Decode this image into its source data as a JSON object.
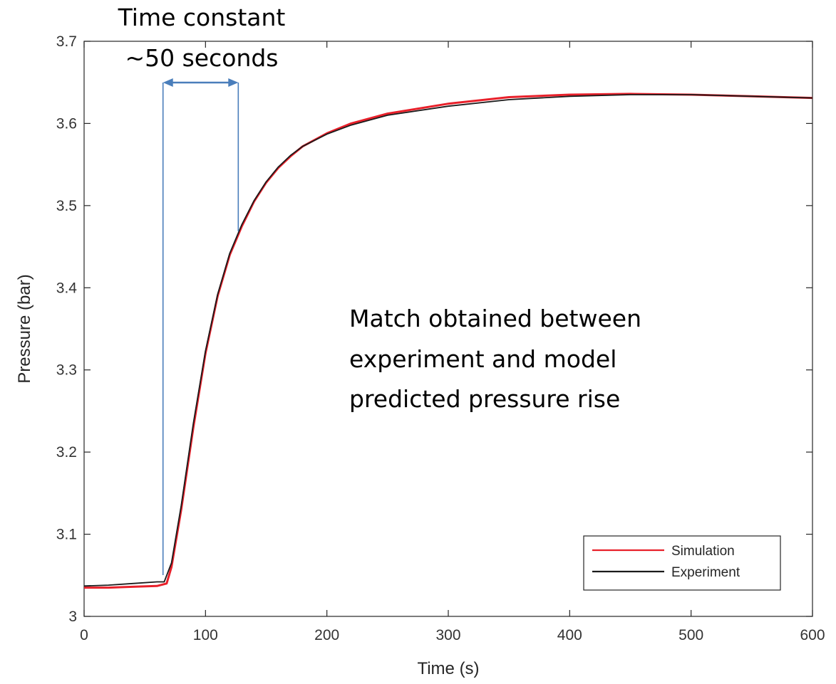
{
  "chart_data": {
    "type": "line",
    "xlabel": "Time (s)",
    "ylabel": "Pressure (bar)",
    "xlim": [
      0,
      600
    ],
    "ylim": [
      3.0,
      3.7
    ],
    "xticks": [
      0,
      100,
      200,
      300,
      400,
      500,
      600
    ],
    "yticks": [
      3,
      3.1,
      3.2,
      3.3,
      3.4,
      3.5,
      3.6,
      3.7
    ],
    "xtick_labels": [
      "0",
      "100",
      "200",
      "300",
      "400",
      "500",
      "600"
    ],
    "ytick_labels": [
      "3",
      "3.1",
      "3.2",
      "3.3",
      "3.4",
      "3.5",
      "3.6",
      "3.7"
    ],
    "grid": false,
    "legend_position": "bottom-right",
    "series": [
      {
        "name": "Simulation",
        "color": "#e8202a",
        "x": [
          0,
          20,
          40,
          60,
          68,
          72,
          80,
          90,
          100,
          110,
          120,
          130,
          140,
          150,
          160,
          170,
          180,
          200,
          220,
          250,
          300,
          350,
          400,
          450,
          500,
          550,
          600
        ],
        "y": [
          3.035,
          3.035,
          3.036,
          3.037,
          3.04,
          3.06,
          3.13,
          3.23,
          3.32,
          3.39,
          3.44,
          3.475,
          3.505,
          3.528,
          3.546,
          3.56,
          3.572,
          3.588,
          3.6,
          3.612,
          3.624,
          3.632,
          3.635,
          3.636,
          3.635,
          3.633,
          3.631
        ]
      },
      {
        "name": "Experiment",
        "color": "#1a1a1a",
        "x": [
          0,
          20,
          40,
          60,
          66,
          72,
          80,
          90,
          100,
          110,
          120,
          130,
          140,
          150,
          160,
          170,
          180,
          200,
          220,
          250,
          300,
          350,
          400,
          450,
          500,
          550,
          600
        ],
        "y": [
          3.037,
          3.038,
          3.04,
          3.042,
          3.042,
          3.065,
          3.135,
          3.235,
          3.323,
          3.392,
          3.442,
          3.477,
          3.506,
          3.529,
          3.547,
          3.561,
          3.572,
          3.587,
          3.598,
          3.61,
          3.621,
          3.629,
          3.633,
          3.635,
          3.635,
          3.633,
          3.631
        ]
      }
    ],
    "annotations": {
      "time_constant_line1": "Time constant",
      "time_constant_line2": "~50 seconds",
      "time_constant_span": [
        65,
        127
      ],
      "time_constant_color": "#4a7ebb",
      "match_line1": "Match obtained between",
      "match_line2": "experiment and model",
      "match_line3": "predicted pressure rise"
    }
  }
}
